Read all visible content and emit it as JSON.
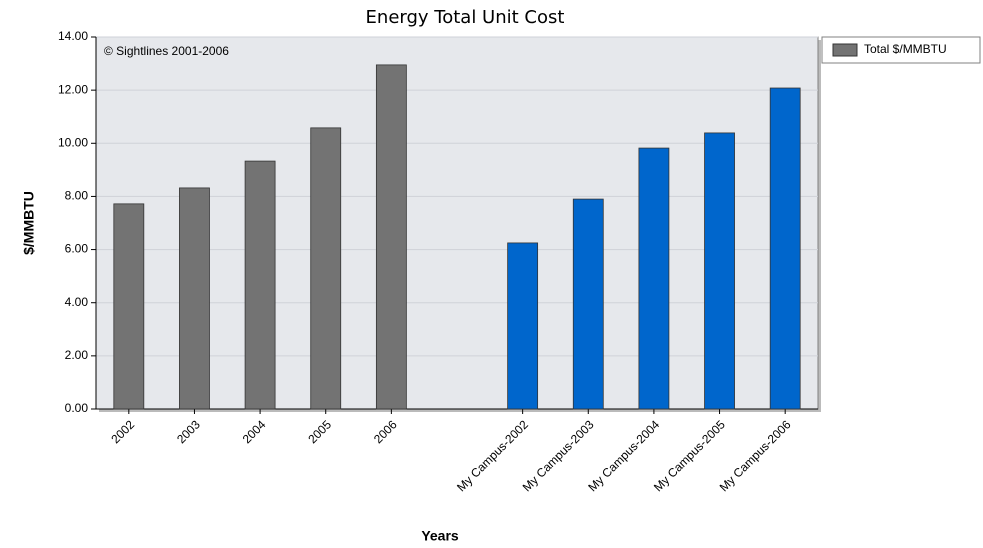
{
  "chart_data": {
    "type": "bar",
    "title": "Energy Total Unit Cost",
    "annotation": "© Sightlines 2001-2006",
    "x_label": "Years",
    "y_label": "$/MMBTU",
    "categories": [
      "2002",
      "2003",
      "2004",
      "2005",
      "2006",
      null,
      "My Campus-2002",
      "My Campus-2003",
      "My Campus-2004",
      "My Campus-2005",
      "My Campus-2006"
    ],
    "series": [
      {
        "name": "Total $/MMBTU",
        "color": "#737373",
        "values": [
          7.72,
          8.32,
          9.33,
          10.58,
          12.95,
          null,
          6.25,
          7.9,
          9.82,
          10.39,
          12.08
        ],
        "colors": [
          "#737373",
          "#737373",
          "#737373",
          "#737373",
          "#737373",
          null,
          "#0066cc",
          "#0066cc",
          "#0066cc",
          "#0066cc",
          "#0066cc"
        ]
      }
    ],
    "ylim": [
      0,
      14
    ],
    "yticks": [
      {
        "value": 0,
        "label": "0.00"
      },
      {
        "value": 2,
        "label": "2.00"
      },
      {
        "value": 4,
        "label": "4.00"
      },
      {
        "value": 6,
        "label": "6.00"
      },
      {
        "value": 8,
        "label": "8.00"
      },
      {
        "value": 10,
        "label": "10.00"
      },
      {
        "value": 12,
        "label": "12.00"
      },
      {
        "value": 14,
        "label": "14.00"
      }
    ],
    "grid": true,
    "legend": "right"
  }
}
